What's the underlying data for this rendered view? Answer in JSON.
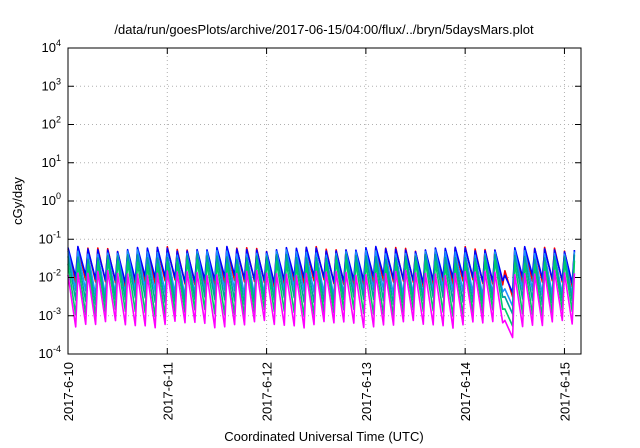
{
  "chart_data": {
    "type": "line",
    "title": "/data/run/goesPlots/archive/2017-06-15/04:00/flux/../bryn/5daysMars.plot",
    "xlabel": "Coordinated Universal Time (UTC)",
    "ylabel": "cGy/day",
    "yscale": "log",
    "ylim": [
      0.0001,
      10000
    ],
    "y_ticks": [
      {
        "base": "10",
        "exp": "-4",
        "value": 0.0001
      },
      {
        "base": "10",
        "exp": "-3",
        "value": 0.001
      },
      {
        "base": "10",
        "exp": "-2",
        "value": 0.01
      },
      {
        "base": "10",
        "exp": "-1",
        "value": 0.1
      },
      {
        "base": "10",
        "exp": "0",
        "value": 1
      },
      {
        "base": "10",
        "exp": "1",
        "value": 10
      },
      {
        "base": "10",
        "exp": "2",
        "value": 100
      },
      {
        "base": "10",
        "exp": "3",
        "value": 1000
      },
      {
        "base": "10",
        "exp": "4",
        "value": 10000
      }
    ],
    "x_ticks": [
      "2017-6-10",
      "2017-6-11",
      "2017-6-12",
      "2017-6-13",
      "2017-6-14",
      "2017-6-15"
    ],
    "xlim": [
      "2017-06-10 00:00",
      "2017-06-15 04:00"
    ],
    "grid": true,
    "legend": "none",
    "oscillation_period_hours": 2.4,
    "series": [
      {
        "color": "#ff0000",
        "peak": 0.055,
        "trough": 0.007
      },
      {
        "color": "#0000ff",
        "peak": 0.055,
        "trough": 0.009
      },
      {
        "color": "#1e90ff",
        "peak": 0.045,
        "trough": 0.004
      },
      {
        "color": "#00a0a0",
        "peak": 0.035,
        "trough": 0.0025
      },
      {
        "color": "#00cc66",
        "peak": 0.025,
        "trough": 0.0012
      },
      {
        "color": "#ff00ff",
        "peak": 0.013,
        "trough": 0.0006
      }
    ]
  }
}
